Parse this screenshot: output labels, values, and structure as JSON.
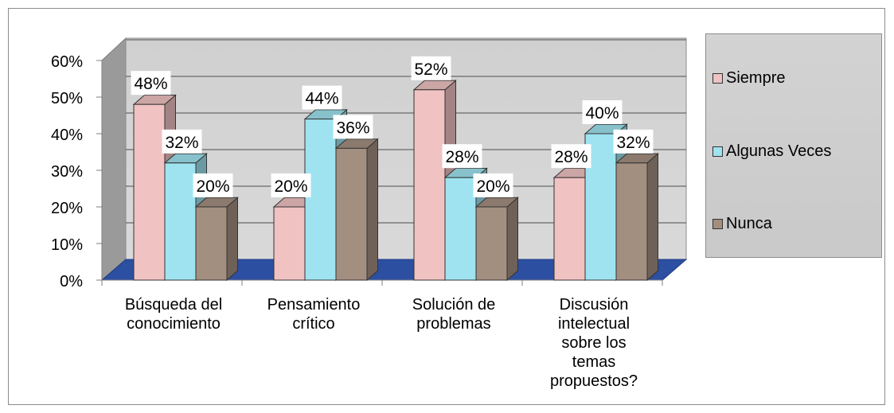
{
  "chart_data": {
    "type": "bar",
    "categories": [
      "Búsqueda del conocimiento",
      "Pensamiento crítico",
      "Solución de problemas",
      "Discusión intelectual sobre los temas propuestos?"
    ],
    "category_lines": [
      [
        "Búsqueda del",
        "conocimiento"
      ],
      [
        "Pensamiento",
        "crítico"
      ],
      [
        "Solución de",
        "problemas"
      ],
      [
        "Discusión",
        "intelectual",
        "sobre los",
        "temas",
        "propuestos?"
      ]
    ],
    "series": [
      {
        "name": "Siempre",
        "values": [
          48,
          20,
          52,
          28
        ],
        "color": "#f0c2c2"
      },
      {
        "name": "Algunas Veces",
        "values": [
          32,
          44,
          28,
          40
        ],
        "color": "#9fe3f0"
      },
      {
        "name": "Nunca",
        "values": [
          20,
          36,
          20,
          32
        ],
        "color": "#a38f80"
      }
    ],
    "data_labels": [
      [
        "48%",
        "20%",
        "52%",
        "28%"
      ],
      [
        "32%",
        "44%",
        "28%",
        "40%"
      ],
      [
        "20%",
        "36%",
        "20%",
        "32%"
      ]
    ],
    "y_ticks": [
      "0%",
      "10%",
      "20%",
      "30%",
      "40%",
      "50%",
      "60%"
    ],
    "ylim": [
      0,
      60
    ],
    "legend_position": "right",
    "grid": true,
    "style": "3d-clustered-column"
  }
}
